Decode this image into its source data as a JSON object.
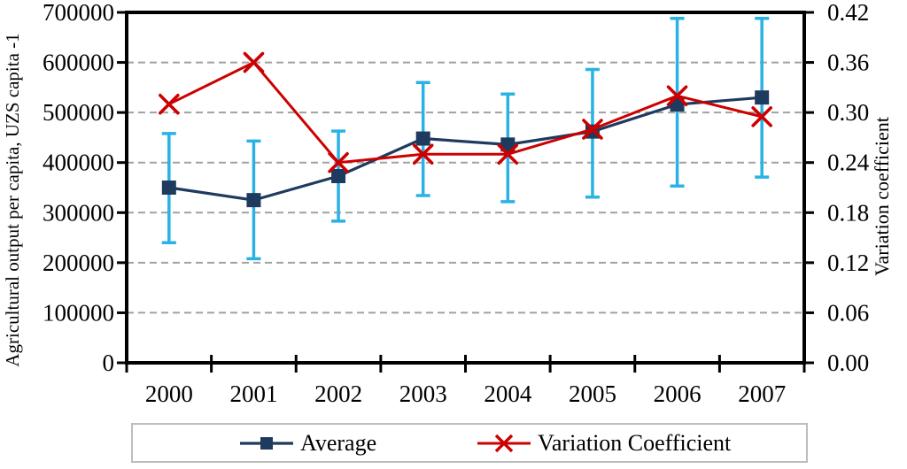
{
  "chart_data": {
    "type": "line",
    "title": "",
    "x_categories": [
      "2000",
      "2001",
      "2002",
      "2003",
      "2004",
      "2005",
      "2006",
      "2007"
    ],
    "left_axis": {
      "label": "Agricultural output per capita, UZS capita -1",
      "min": 0,
      "max": 700000,
      "step": 100000,
      "tick_labels": [
        "0",
        "100000",
        "200000",
        "300000",
        "400000",
        "500000",
        "600000",
        "700000"
      ]
    },
    "right_axis": {
      "label": "Variation coefficient",
      "min": 0,
      "max": 0.42,
      "step": 0.06,
      "tick_labels": [
        "0.00",
        "0.06",
        "0.12",
        "0.18",
        "0.24",
        "0.30",
        "0.36",
        "0.42"
      ]
    },
    "series": [
      {
        "name": "Average",
        "axis": "left",
        "marker": "square",
        "color": "#1f3a5f",
        "values": [
          350000,
          325000,
          373000,
          448000,
          436000,
          462000,
          516000,
          530000
        ],
        "error_bars": {
          "color": "#29b2e5",
          "low": [
            240000,
            208000,
            283000,
            334000,
            322000,
            331000,
            353000,
            371000
          ],
          "high": [
            458000,
            443000,
            463000,
            560000,
            537000,
            586000,
            688000,
            688000
          ]
        }
      },
      {
        "name": "Variation Coefficient",
        "axis": "right",
        "marker": "x",
        "color": "#cc0000",
        "values": [
          0.31,
          0.36,
          0.24,
          0.25,
          0.25,
          0.28,
          0.32,
          0.295
        ]
      }
    ],
    "grid": {
      "horizontal": "dashed",
      "color": "#a1a1a1"
    },
    "axis_color": "#000000",
    "background": "#ffffff",
    "legend_position": "bottom"
  }
}
